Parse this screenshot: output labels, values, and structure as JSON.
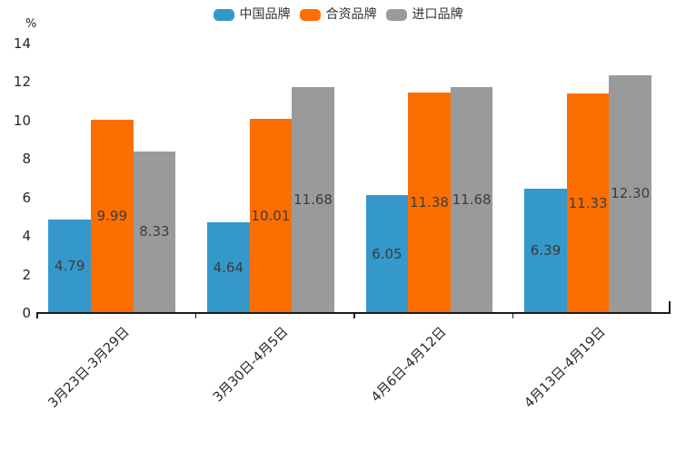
{
  "chart_data": {
    "type": "bar",
    "title": "",
    "ylabel": "%",
    "xlabel": "",
    "categories": [
      "3月23日-3月29日",
      "3月30日-4月5日",
      "4月6日-4月12日",
      "4月13日-4月19日"
    ],
    "series": [
      {
        "name": "中国品牌",
        "color": "#3498cb",
        "values": [
          4.79,
          4.64,
          6.05,
          6.39
        ]
      },
      {
        "name": "合资品牌",
        "color": "#fd6e01",
        "values": [
          9.99,
          10.01,
          11.38,
          11.33
        ]
      },
      {
        "name": "进口品牌",
        "color": "#9a9a9a",
        "values": [
          8.33,
          11.68,
          11.68,
          12.3
        ]
      }
    ],
    "ylim": [
      0,
      14
    ],
    "yticks": [
      0,
      2,
      4,
      6,
      8,
      10,
      12,
      14
    ],
    "grid": false,
    "legend_position": "top",
    "value_label_format": "2-decimals",
    "value_label_position": "inside-center",
    "axis_color": "#1a1a1a"
  }
}
